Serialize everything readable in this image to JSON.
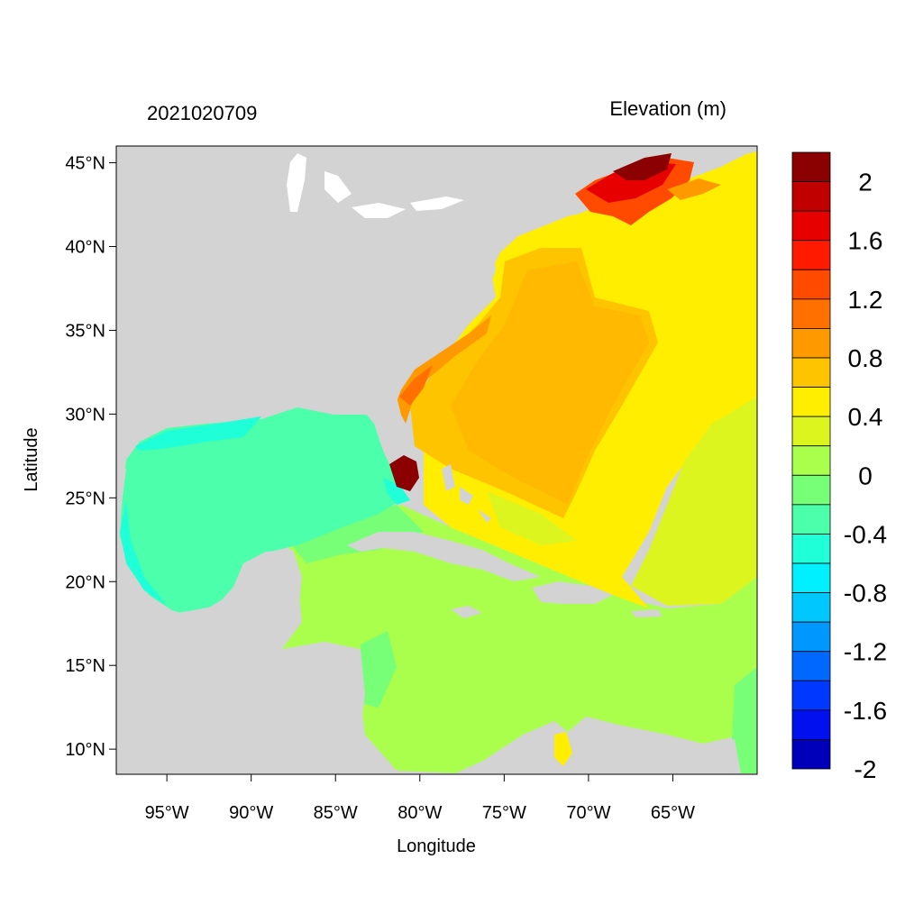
{
  "map": {
    "date_label": "2021020709",
    "field_label": "Elevation (m)",
    "x_axis_title": "Longitude",
    "y_axis_title": "Latitude",
    "lon_ticks": [
      "95°W",
      "90°W",
      "85°W",
      "80°W",
      "75°W",
      "70°W",
      "65°W"
    ],
    "lon_values": [
      -95,
      -90,
      -85,
      -80,
      -75,
      -70,
      -65
    ],
    "lat_ticks": [
      "45°N",
      "40°N",
      "35°N",
      "30°N",
      "25°N",
      "20°N",
      "15°N",
      "10°N"
    ],
    "lat_values": [
      45,
      40,
      35,
      30,
      25,
      20,
      15,
      10
    ],
    "lon_range": [
      -98,
      -60
    ],
    "lat_range": [
      8.5,
      46
    ],
    "land_color": "#d3d3d3",
    "colorbar": {
      "colors": [
        "#8b0000",
        "#c00000",
        "#e60000",
        "#ff1a00",
        "#ff4a00",
        "#ff7000",
        "#ff9900",
        "#ffc400",
        "#ffee00",
        "#ddf51f",
        "#aaff4c",
        "#77ff77",
        "#4cffaa",
        "#1fffd8",
        "#00f0ff",
        "#00c8ff",
        "#0098ff",
        "#0068ff",
        "#0038ff",
        "#0010ee",
        "#0000bb"
      ],
      "labels": [
        "2",
        "1.6",
        "1.2",
        "0.8",
        "0.4",
        "0",
        "-0.4",
        "-0.8",
        "-1.2",
        "-1.6",
        "-2"
      ]
    }
  }
}
